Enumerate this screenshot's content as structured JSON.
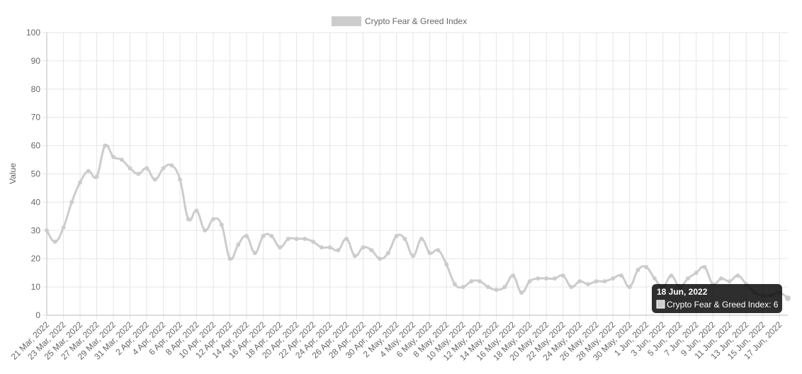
{
  "chart_data": {
    "type": "line",
    "y_label": "Value",
    "categories": [
      "21 Mar, 2022",
      "22 Mar, 2022",
      "23 Mar, 2022",
      "24 Mar, 2022",
      "25 Mar, 2022",
      "26 Mar, 2022",
      "27 Mar, 2022",
      "28 Mar, 2022",
      "29 Mar, 2022",
      "30 Mar, 2022",
      "31 Mar, 2022",
      "1 Apr, 2022",
      "2 Apr, 2022",
      "3 Apr, 2022",
      "4 Apr, 2022",
      "5 Apr, 2022",
      "6 Apr, 2022",
      "7 Apr, 2022",
      "8 Apr, 2022",
      "9 Apr, 2022",
      "10 Apr, 2022",
      "11 Apr, 2022",
      "12 Apr, 2022",
      "13 Apr, 2022",
      "14 Apr, 2022",
      "15 Apr, 2022",
      "16 Apr, 2022",
      "17 Apr, 2022",
      "18 Apr, 2022",
      "19 Apr, 2022",
      "20 Apr, 2022",
      "21 Apr, 2022",
      "22 Apr, 2022",
      "23 Apr, 2022",
      "24 Apr, 2022",
      "25 Apr, 2022",
      "26 Apr, 2022",
      "27 Apr, 2022",
      "28 Apr, 2022",
      "29 Apr, 2022",
      "30 Apr, 2022",
      "1 May, 2022",
      "2 May, 2022",
      "3 May, 2022",
      "4 May, 2022",
      "5 May, 2022",
      "6 May, 2022",
      "7 May, 2022",
      "8 May, 2022",
      "9 May, 2022",
      "10 May, 2022",
      "11 May, 2022",
      "12 May, 2022",
      "13 May, 2022",
      "14 May, 2022",
      "15 May, 2022",
      "16 May, 2022",
      "17 May, 2022",
      "18 May, 2022",
      "19 May, 2022",
      "20 May, 2022",
      "21 May, 2022",
      "22 May, 2022",
      "23 May, 2022",
      "24 May, 2022",
      "25 May, 2022",
      "26 May, 2022",
      "27 May, 2022",
      "28 May, 2022",
      "29 May, 2022",
      "30 May, 2022",
      "31 May, 2022",
      "1 Jun, 2022",
      "2 Jun, 2022",
      "3 Jun, 2022",
      "4 Jun, 2022",
      "5 Jun, 2022",
      "6 Jun, 2022",
      "7 Jun, 2022",
      "8 Jun, 2022",
      "9 Jun, 2022",
      "10 Jun, 2022",
      "11 Jun, 2022",
      "12 Jun, 2022",
      "13 Jun, 2022",
      "14 Jun, 2022",
      "15 Jun, 2022",
      "16 Jun, 2022",
      "17 Jun, 2022",
      "18 Jun, 2022"
    ],
    "series": [
      {
        "name": "Crypto Fear & Greed Index",
        "color": "#cccccc",
        "values": [
          30,
          26,
          31,
          40,
          47,
          51,
          49,
          60,
          56,
          55,
          52,
          50,
          52,
          48,
          52,
          53,
          48,
          34,
          37,
          30,
          34,
          32,
          20,
          25,
          28,
          22,
          28,
          28,
          24,
          27,
          27,
          27,
          26,
          24,
          24,
          23,
          27,
          21,
          24,
          23,
          20,
          22,
          28,
          27,
          21,
          27,
          22,
          23,
          18,
          11,
          10,
          12,
          12,
          10,
          9,
          10,
          14,
          8,
          12,
          13,
          13,
          13,
          14,
          10,
          12,
          11,
          12,
          12,
          13,
          14,
          10,
          16,
          17,
          13,
          10,
          14,
          10,
          13,
          15,
          17,
          11,
          13,
          12,
          14,
          11,
          8,
          7,
          7,
          8,
          6
        ]
      }
    ],
    "ylim": [
      0,
      100
    ],
    "yticks": [
      0,
      10,
      20,
      30,
      40,
      50,
      60,
      70,
      80,
      90,
      100
    ],
    "grid": true,
    "tooltip_index": 89
  }
}
